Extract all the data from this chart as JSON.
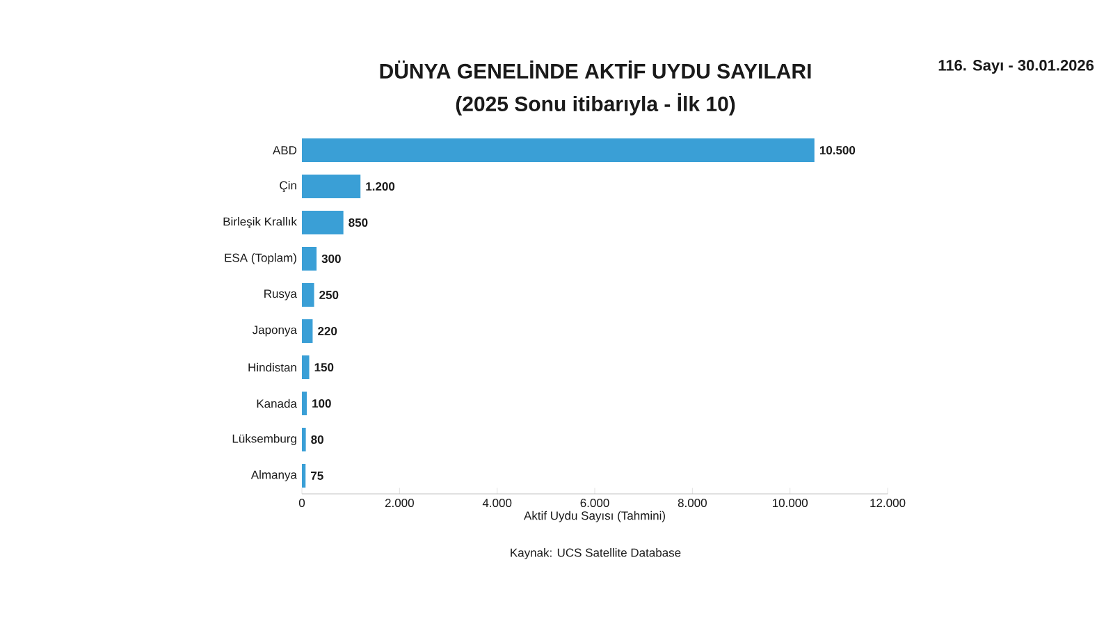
{
  "chart_data": {
    "type": "bar",
    "orientation": "horizontal",
    "title": "DÜNYA GENELİNDE AKTİF UYDU SAYILARI",
    "subtitle": "(2025 Sonu itibarıyla - İlk 10)",
    "xlabel": "Aktif Uydu Sayısı (Tahmini)",
    "categories": [
      "ABD",
      "Çin",
      "Birleşik Krallık",
      "ESA (Toplam)",
      "Rusya",
      "Japonya",
      "Hindistan",
      "Kanada",
      "Lüksemburg",
      "Almanya"
    ],
    "values": [
      10500,
      1200,
      850,
      300,
      250,
      220,
      150,
      100,
      80,
      75
    ],
    "value_labels": [
      "10.500",
      "1.200",
      "850",
      "300",
      "250",
      "220",
      "150",
      "100",
      "80",
      "75"
    ],
    "color": "#3a9fd6",
    "xlim": [
      0,
      12000
    ],
    "xticks": [
      0,
      {
        "value": 2000,
        "label": "2.000"
      },
      {
        "value": 4000,
        "label": "4.000"
      },
      {
        "value": 6000,
        "label": "6.000"
      },
      {
        "value": 8000,
        "label": "8.000"
      },
      {
        "value": 10000,
        "label": "10.000"
      },
      {
        "value": 12000,
        "label": "12.000"
      }
    ],
    "annotations": [
      "Kaynak: UCS Satellite Database",
      "116. Sayı - 30.01.2026"
    ]
  }
}
